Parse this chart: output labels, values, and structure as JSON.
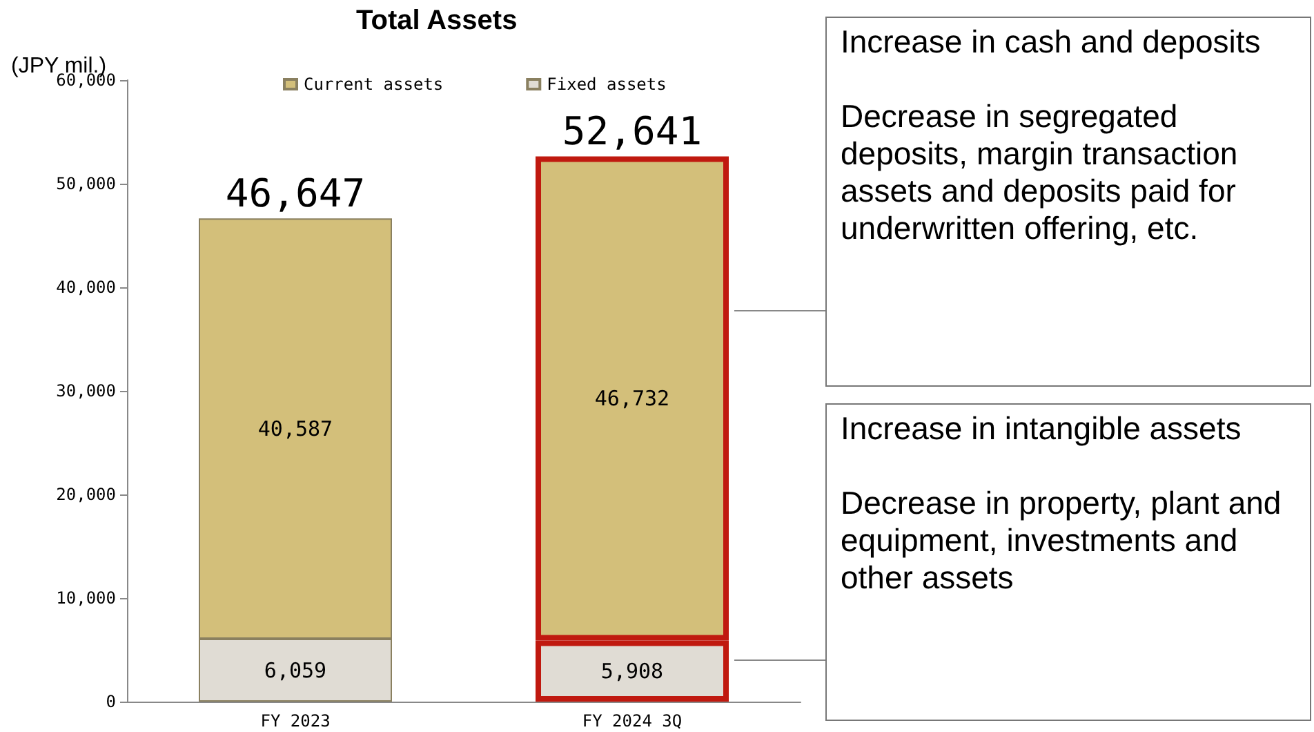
{
  "chart_data": {
    "type": "bar",
    "title": "Total Assets",
    "ylabel": "(JPY mil.)",
    "categories": [
      "FY 2023",
      "FY 2024 3Q"
    ],
    "stacked": true,
    "series": [
      {
        "name": "Fixed assets",
        "color": "#e0dcd4",
        "values": [
          6059,
          5908
        ],
        "value_labels": [
          "6,059",
          "5,908"
        ]
      },
      {
        "name": "Current assets",
        "color": "#d3bf7a",
        "values": [
          40587,
          46732
        ],
        "value_labels": [
          "40,587",
          "46,732"
        ]
      }
    ],
    "totals": [
      "46,647",
      "52,641"
    ],
    "ylim": [
      0,
      60000
    ],
    "yticks": [
      {
        "value": 0,
        "label": "0"
      },
      {
        "value": 10000,
        "label": "10,000"
      },
      {
        "value": 20000,
        "label": "20,000"
      },
      {
        "value": 30000,
        "label": "30,000"
      },
      {
        "value": 40000,
        "label": "40,000"
      },
      {
        "value": 50000,
        "label": "50,000"
      },
      {
        "value": 60000,
        "label": "60,000"
      }
    ],
    "grid": false,
    "legend": "top",
    "annotations": [
      "Increase in cash and deposits",
      "Decrease in segregated deposits, margin transaction assets and deposits paid for underwritten offering, etc.",
      "Increase in intangible assets",
      "Decrease in property, plant and equipment, investments and other assets"
    ]
  }
}
